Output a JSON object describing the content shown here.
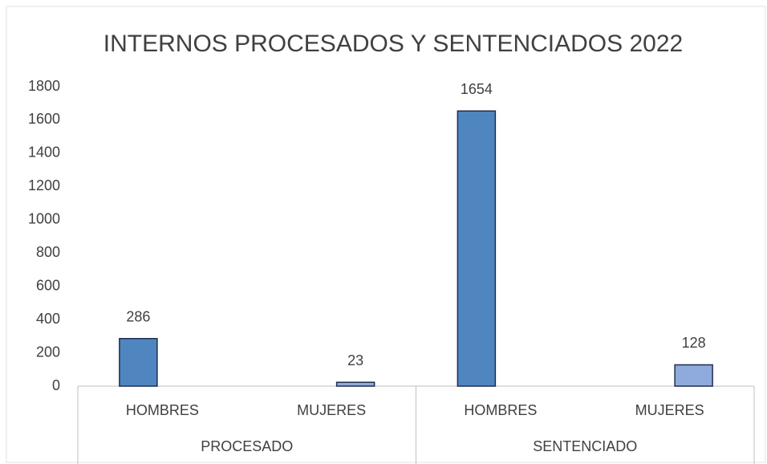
{
  "chart_data": {
    "type": "bar",
    "title": "INTERNOS PROCESADOS Y SENTENCIADOS 2022",
    "categories": [
      "HOMBRES",
      "MUJERES",
      "HOMBRES",
      "MUJERES"
    ],
    "groups": [
      "PROCESADO",
      "SENTENCIADO"
    ],
    "values": [
      286,
      23,
      1654,
      128
    ],
    "colors": [
      "#4f86c0",
      "#8faadc",
      "#4f86c0",
      "#8faadc"
    ],
    "ylim": [
      0,
      1800
    ],
    "yticks": [
      0,
      200,
      400,
      600,
      800,
      1000,
      1200,
      1400,
      1600,
      1800
    ],
    "grid": false
  }
}
